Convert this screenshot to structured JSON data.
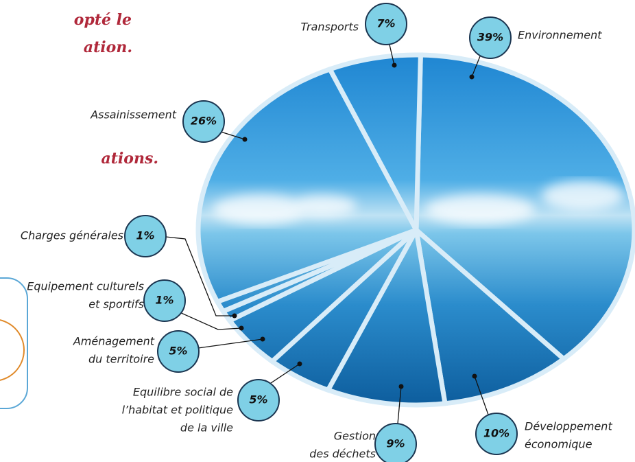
{
  "header_fragments": [
    "opté le",
    "ation.",
    "ations."
  ],
  "chart_data": {
    "type": "pie",
    "categories": [
      [
        "Environnement"
      ],
      [
        "Développement",
        "économique"
      ],
      [
        "Gestion",
        "des déchets"
      ],
      [
        "Equilibre social de",
        "l’habitat et politique",
        "de la ville"
      ],
      [
        "Aménagement",
        "du territoire"
      ],
      [
        "Equipement culturels",
        "et sportifs"
      ],
      [
        "Charges générales"
      ],
      [
        "Assainissement"
      ],
      [
        "Transports"
      ]
    ],
    "values": [
      39,
      10,
      9,
      5,
      5,
      1,
      1,
      26,
      7
    ],
    "value_labels": [
      "39%",
      "10%",
      "9%",
      "5%",
      "5%",
      "1%",
      "1%",
      "26%",
      "7%"
    ]
  }
}
